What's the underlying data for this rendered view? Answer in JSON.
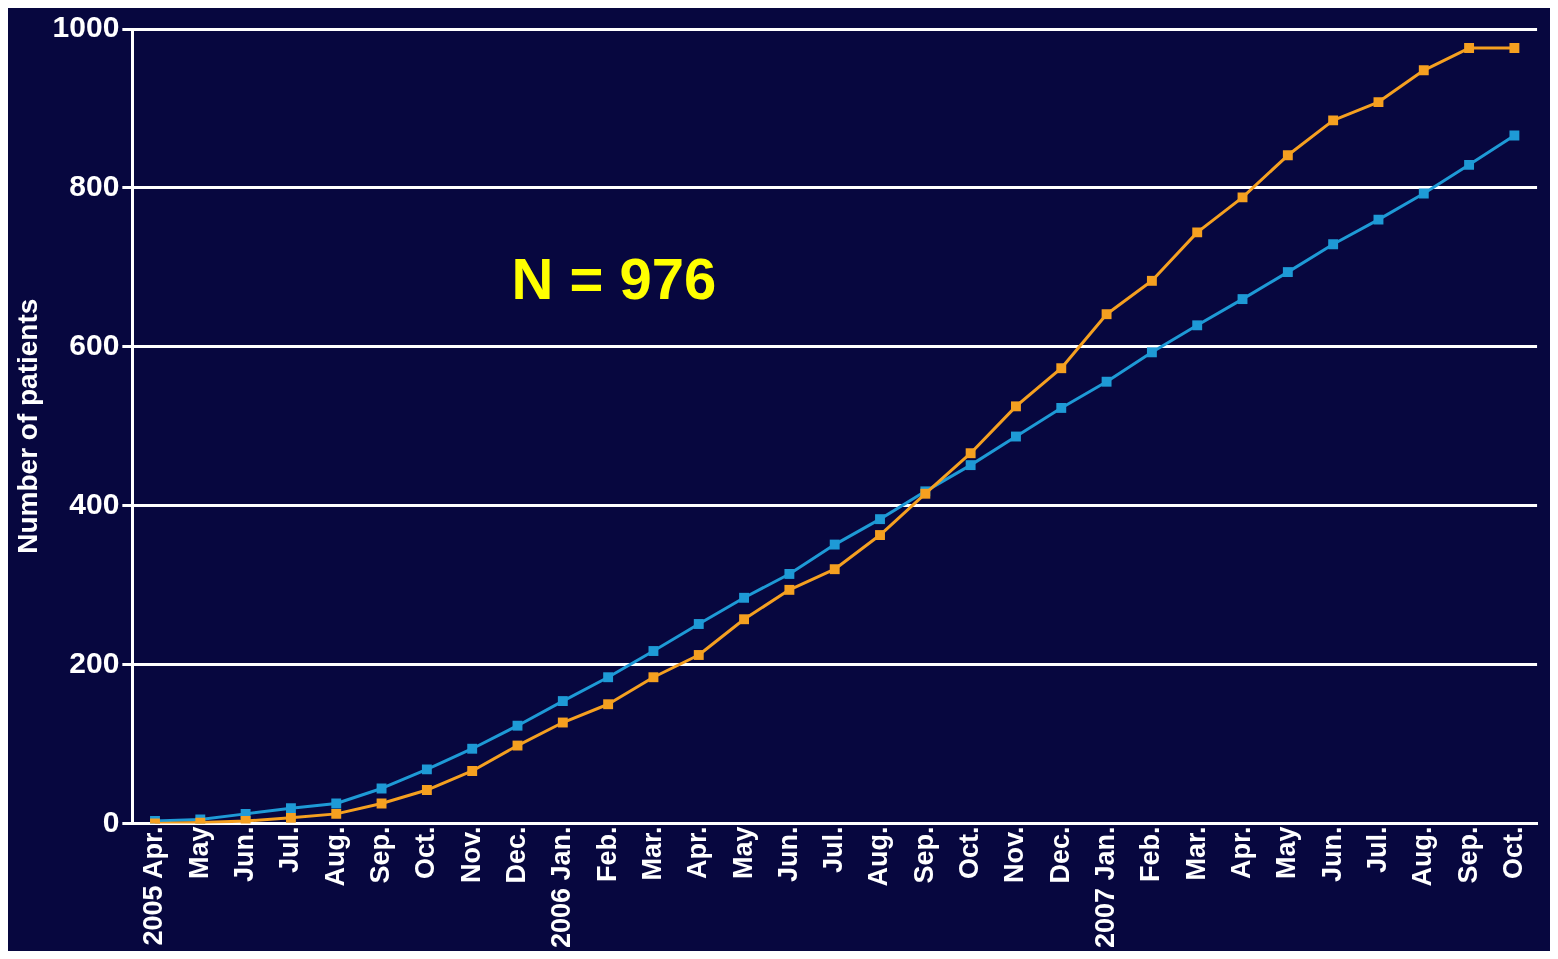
{
  "chart_data": {
    "type": "line",
    "ylabel": "Number of patients",
    "categories": [
      "2005 Apr.",
      "May",
      "Jun.",
      "Jul.",
      "Aug.",
      "Sep.",
      "Oct.",
      "Nov.",
      "Dec.",
      "2006 Jan.",
      "Feb.",
      "Mar.",
      "Apr.",
      "May",
      "Jun.",
      "Jul.",
      "Aug.",
      "Sep.",
      "Oct.",
      "Nov.",
      "Dec.",
      "2007 Jan.",
      "Feb.",
      "Mar.",
      "Apr.",
      "May",
      "Jun.",
      "Jul.",
      "Aug.",
      "Sep.",
      "Oct."
    ],
    "series": [
      {
        "color": "#f5a020",
        "values": [
          0,
          1,
          3,
          7,
          12,
          25,
          42,
          66,
          98,
          127,
          150,
          184,
          212,
          257,
          294,
          320,
          363,
          415,
          466,
          525,
          573,
          641,
          683,
          744,
          788,
          841,
          885,
          908,
          948,
          976,
          976
        ]
      },
      {
        "color": "#1e9ad6",
        "values": [
          3,
          5,
          12,
          19,
          25,
          44,
          68,
          94,
          123,
          154,
          184,
          217,
          251,
          284,
          314,
          351,
          383,
          418,
          451,
          487,
          523,
          556,
          593,
          627,
          660,
          694,
          729,
          760,
          793,
          829,
          866
        ]
      }
    ],
    "ylim": [
      0,
      1000
    ],
    "yticks": [
      0,
      200,
      400,
      600,
      800,
      1000
    ],
    "grid": "y",
    "legend": false,
    "marker": "square",
    "line_style": "solid",
    "annotations": [
      "N = 976"
    ]
  }
}
